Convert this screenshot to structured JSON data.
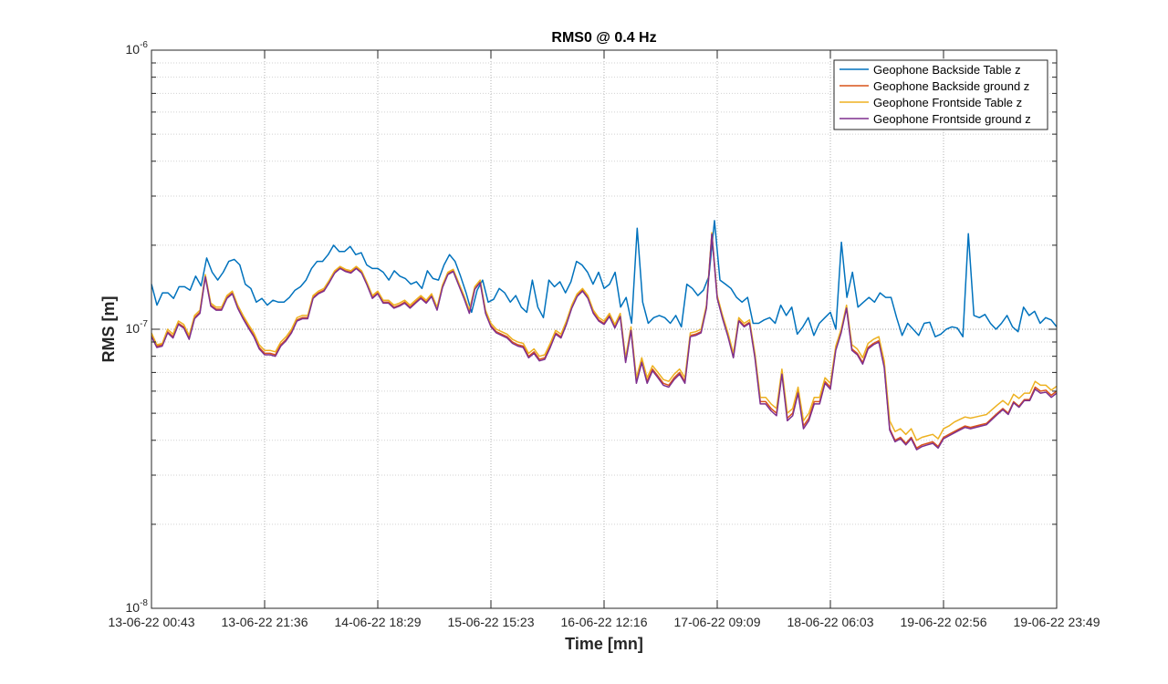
{
  "chart_data": {
    "type": "line",
    "title": "RMS0 @ 0.4 Hz",
    "xlabel": "Time [mn]",
    "ylabel": "RMS [m]",
    "yscale": "log",
    "ylim": [
      1e-08,
      1e-06
    ],
    "y_tick_labels": [
      {
        "value": 1e-08,
        "base": "10",
        "exp": "-8"
      },
      {
        "value": 1e-07,
        "base": "10",
        "exp": "-7"
      },
      {
        "value": 1e-06,
        "base": "10",
        "exp": "-6"
      }
    ],
    "x_tick_labels": [
      "13-06-22 00:43",
      "13-06-22 21:36",
      "14-06-22 18:29",
      "15-06-22 15:23",
      "16-06-22 12:16",
      "17-06-22 09:09",
      "18-06-22 06:03",
      "19-06-22 02:56",
      "19-06-22 23:49"
    ],
    "grid": true,
    "legend_position": "top-right",
    "series": [
      {
        "name": "Geophone Backside Table z",
        "color": "#0072BD",
        "values": [
          1.45e-07,
          1.22e-07,
          1.35e-07,
          1.35e-07,
          1.29e-07,
          1.42e-07,
          1.42e-07,
          1.38e-07,
          1.55e-07,
          1.43e-07,
          1.8e-07,
          1.6e-07,
          1.5e-07,
          1.6e-07,
          1.75e-07,
          1.78e-07,
          1.7e-07,
          1.45e-07,
          1.4e-07,
          1.25e-07,
          1.29e-07,
          1.22e-07,
          1.27e-07,
          1.25e-07,
          1.25e-07,
          1.3e-07,
          1.38e-07,
          1.42e-07,
          1.5e-07,
          1.65e-07,
          1.75e-07,
          1.75e-07,
          1.85e-07,
          2e-07,
          1.9e-07,
          1.9e-07,
          1.98e-07,
          1.85e-07,
          1.88e-07,
          1.7e-07,
          1.65e-07,
          1.65e-07,
          1.6e-07,
          1.5e-07,
          1.62e-07,
          1.55e-07,
          1.52e-07,
          1.45e-07,
          1.48e-07,
          1.4e-07,
          1.62e-07,
          1.52e-07,
          1.5e-07,
          1.7e-07,
          1.85e-07,
          1.75e-07,
          1.55e-07,
          1.35e-07,
          1.15e-07,
          1.38e-07,
          1.5e-07,
          1.25e-07,
          1.28e-07,
          1.4e-07,
          1.35e-07,
          1.25e-07,
          1.32e-07,
          1.2e-07,
          1.15e-07,
          1.5e-07,
          1.2e-07,
          1.1e-07,
          1.5e-07,
          1.42e-07,
          1.48e-07,
          1.35e-07,
          1.48e-07,
          1.75e-07,
          1.7e-07,
          1.6e-07,
          1.45e-07,
          1.6e-07,
          1.4e-07,
          1.45e-07,
          1.6e-07,
          1.2e-07,
          1.3e-07,
          1.05e-07,
          2.3e-07,
          1.25e-07,
          1.05e-07,
          1.1e-07,
          1.12e-07,
          1.1e-07,
          1.05e-07,
          1.12e-07,
          1.02e-07,
          1.45e-07,
          1.4e-07,
          1.32e-07,
          1.38e-07,
          1.55e-07,
          2.45e-07,
          1.5e-07,
          1.45e-07,
          1.4e-07,
          1.3e-07,
          1.25e-07,
          1.3e-07,
          1.05e-07,
          1.05e-07,
          1.08e-07,
          1.1e-07,
          1.05e-07,
          1.22e-07,
          1.12e-07,
          1.2e-07,
          9.6e-08,
          1.02e-07,
          1.1e-07,
          9.5e-08,
          1.05e-07,
          1.1e-07,
          1.15e-07,
          1e-07,
          2.05e-07,
          1.3e-07,
          1.6e-07,
          1.2e-07,
          1.25e-07,
          1.3e-07,
          1.25e-07,
          1.35e-07,
          1.3e-07,
          1.3e-07,
          1.1e-07,
          9.5e-08,
          1.05e-07,
          1e-07,
          9.5e-08,
          1.05e-07,
          1.06e-07,
          9.4e-08,
          9.6e-08,
          1e-07,
          1.02e-07,
          1.01e-07,
          9.4e-08,
          2.2e-07,
          1.12e-07,
          1.1e-07,
          1.13e-07,
          1.05e-07,
          1e-07,
          1.05e-07,
          1.12e-07,
          1.02e-07,
          9.8e-08,
          1.2e-07,
          1.12e-07,
          1.16e-07,
          1.05e-07,
          1.1e-07,
          1.08e-07,
          1.02e-07
        ]
      },
      {
        "name": "Geophone Backside ground z",
        "color": "#D95319",
        "values": [
          9.5e-08,
          8.7e-08,
          8.8e-08,
          9.8e-08,
          9.4e-08,
          1.05e-07,
          1.02e-07,
          9.3e-08,
          1.1e-07,
          1.15e-07,
          1.55e-07,
          1.22e-07,
          1.18e-07,
          1.18e-07,
          1.3e-07,
          1.35e-07,
          1.2e-07,
          1.1e-07,
          1.02e-07,
          9.5e-08,
          8.6e-08,
          8.2e-08,
          8.2e-08,
          8.1e-08,
          8.8e-08,
          9.2e-08,
          9.8e-08,
          1.08e-07,
          1.1e-07,
          1.1e-07,
          1.3e-07,
          1.35e-07,
          1.38e-07,
          1.48e-07,
          1.6e-07,
          1.66e-07,
          1.62e-07,
          1.6e-07,
          1.66e-07,
          1.6e-07,
          1.45e-07,
          1.3e-07,
          1.35e-07,
          1.25e-07,
          1.25e-07,
          1.2e-07,
          1.22e-07,
          1.25e-07,
          1.2e-07,
          1.25e-07,
          1.3e-07,
          1.25e-07,
          1.32e-07,
          1.18e-07,
          1.42e-07,
          1.58e-07,
          1.62e-07,
          1.45e-07,
          1.3e-07,
          1.15e-07,
          1.4e-07,
          1.48e-07,
          1.15e-07,
          1.03e-07,
          9.8e-08,
          9.6e-08,
          9.4e-08,
          9e-08,
          8.8e-08,
          8.7e-08,
          8e-08,
          8.3e-08,
          7.8e-08,
          7.9e-08,
          8.7e-08,
          9.7e-08,
          9.4e-08,
          1.05e-07,
          1.2e-07,
          1.32e-07,
          1.38e-07,
          1.3e-07,
          1.15e-07,
          1.08e-07,
          1.05e-07,
          1.12e-07,
          1.02e-07,
          1.12e-07,
          7.7e-08,
          1e-07,
          6.5e-08,
          7.7e-08,
          6.5e-08,
          7.2e-08,
          6.8e-08,
          6.4e-08,
          6.3e-08,
          6.7e-08,
          7e-08,
          6.5e-08,
          9.5e-08,
          9.6e-08,
          9.8e-08,
          1.2e-07,
          2.2e-07,
          1.3e-07,
          1.1e-07,
          9.5e-08,
          8e-08,
          1.08e-07,
          1.03e-07,
          1.06e-07,
          8e-08,
          5.5e-08,
          5.5e-08,
          5.2e-08,
          5e-08,
          7e-08,
          4.8e-08,
          5e-08,
          6e-08,
          4.5e-08,
          4.8e-08,
          5.5e-08,
          5.5e-08,
          6.5e-08,
          6.2e-08,
          8.5e-08,
          9.8e-08,
          1.2e-07,
          8.5e-08,
          8.2e-08,
          7.6e-08,
          8.6e-08,
          8.9e-08,
          9.1e-08,
          7.4e-08,
          4.4e-08,
          4e-08,
          4.1e-08,
          3.9e-08,
          4.1e-08,
          3.75e-08,
          3.85e-08,
          3.9e-08,
          3.95e-08,
          3.8e-08,
          4.1e-08,
          4.2e-08,
          4.3e-08,
          4.4e-08,
          4.5e-08,
          4.45e-08,
          4.5e-08,
          4.55e-08,
          4.6e-08,
          4.8e-08,
          5e-08,
          5.2e-08,
          5e-08,
          5.5e-08,
          5.3e-08,
          5.6e-08,
          5.6e-08,
          6.2e-08,
          6e-08,
          6.05e-08,
          5.8e-08,
          6e-08
        ]
      },
      {
        "name": "Geophone Frontside Table z",
        "color": "#EDB120",
        "values": [
          9.7e-08,
          8.8e-08,
          8.9e-08,
          1e-07,
          9.6e-08,
          1.07e-07,
          1.04e-07,
          9.5e-08,
          1.12e-07,
          1.17e-07,
          1.57e-07,
          1.24e-07,
          1.2e-07,
          1.2e-07,
          1.32e-07,
          1.37e-07,
          1.22e-07,
          1.12e-07,
          1.04e-07,
          9.7e-08,
          8.8e-08,
          8.4e-08,
          8.4e-08,
          8.3e-08,
          9e-08,
          9.4e-08,
          1e-07,
          1.1e-07,
          1.12e-07,
          1.12e-07,
          1.32e-07,
          1.37e-07,
          1.4e-07,
          1.5e-07,
          1.62e-07,
          1.68e-07,
          1.64e-07,
          1.62e-07,
          1.68e-07,
          1.62e-07,
          1.47e-07,
          1.32e-07,
          1.37e-07,
          1.27e-07,
          1.27e-07,
          1.22e-07,
          1.24e-07,
          1.27e-07,
          1.22e-07,
          1.27e-07,
          1.32e-07,
          1.27e-07,
          1.34e-07,
          1.2e-07,
          1.44e-07,
          1.6e-07,
          1.64e-07,
          1.47e-07,
          1.32e-07,
          1.17e-07,
          1.42e-07,
          1.5e-07,
          1.17e-07,
          1.05e-07,
          1e-07,
          9.8e-08,
          9.6e-08,
          9.2e-08,
          9e-08,
          8.9e-08,
          8.2e-08,
          8.5e-08,
          8e-08,
          8.1e-08,
          8.9e-08,
          9.9e-08,
          9.6e-08,
          1.07e-07,
          1.22e-07,
          1.34e-07,
          1.4e-07,
          1.32e-07,
          1.17e-07,
          1.1e-07,
          1.07e-07,
          1.14e-07,
          1.04e-07,
          1.14e-07,
          7.9e-08,
          1.02e-07,
          6.7e-08,
          7.9e-08,
          6.7e-08,
          7.4e-08,
          7e-08,
          6.6e-08,
          6.5e-08,
          6.9e-08,
          7.2e-08,
          6.7e-08,
          9.7e-08,
          9.8e-08,
          1e-07,
          1.22e-07,
          2.22e-07,
          1.32e-07,
          1.12e-07,
          9.7e-08,
          8.2e-08,
          1.1e-07,
          1.05e-07,
          1.08e-07,
          8.2e-08,
          5.7e-08,
          5.7e-08,
          5.4e-08,
          5.2e-08,
          7.2e-08,
          5e-08,
          5.2e-08,
          6.2e-08,
          4.7e-08,
          5e-08,
          5.7e-08,
          5.7e-08,
          6.7e-08,
          6.4e-08,
          8.7e-08,
          1e-07,
          1.22e-07,
          8.8e-08,
          8.5e-08,
          7.9e-08,
          8.9e-08,
          9.2e-08,
          9.4e-08,
          7.7e-08,
          4.7e-08,
          4.3e-08,
          4.4e-08,
          4.2e-08,
          4.4e-08,
          4e-08,
          4.1e-08,
          4.15e-08,
          4.2e-08,
          4.05e-08,
          4.4e-08,
          4.5e-08,
          4.65e-08,
          4.75e-08,
          4.85e-08,
          4.8e-08,
          4.85e-08,
          4.9e-08,
          4.95e-08,
          5.15e-08,
          5.35e-08,
          5.55e-08,
          5.35e-08,
          5.85e-08,
          5.65e-08,
          5.9e-08,
          5.9e-08,
          6.5e-08,
          6.3e-08,
          6.3e-08,
          6.05e-08,
          6.25e-08
        ]
      },
      {
        "name": "Geophone Frontside ground z",
        "color": "#7E2F8E",
        "values": [
          9.4e-08,
          8.6e-08,
          8.7e-08,
          9.7e-08,
          9.3e-08,
          1.04e-07,
          1.01e-07,
          9.2e-08,
          1.09e-07,
          1.14e-07,
          1.54e-07,
          1.21e-07,
          1.17e-07,
          1.17e-07,
          1.29e-07,
          1.34e-07,
          1.19e-07,
          1.09e-07,
          1.01e-07,
          9.4e-08,
          8.5e-08,
          8.1e-08,
          8.1e-08,
          8e-08,
          8.7e-08,
          9.1e-08,
          9.7e-08,
          1.07e-07,
          1.09e-07,
          1.09e-07,
          1.29e-07,
          1.34e-07,
          1.37e-07,
          1.47e-07,
          1.59e-07,
          1.65e-07,
          1.61e-07,
          1.59e-07,
          1.65e-07,
          1.59e-07,
          1.44e-07,
          1.29e-07,
          1.34e-07,
          1.24e-07,
          1.24e-07,
          1.19e-07,
          1.21e-07,
          1.24e-07,
          1.19e-07,
          1.24e-07,
          1.29e-07,
          1.24e-07,
          1.31e-07,
          1.17e-07,
          1.41e-07,
          1.57e-07,
          1.61e-07,
          1.44e-07,
          1.29e-07,
          1.14e-07,
          1.39e-07,
          1.47e-07,
          1.14e-07,
          1.02e-07,
          9.7e-08,
          9.5e-08,
          9.3e-08,
          8.9e-08,
          8.7e-08,
          8.6e-08,
          7.9e-08,
          8.2e-08,
          7.7e-08,
          7.8e-08,
          8.6e-08,
          9.6e-08,
          9.3e-08,
          1.04e-07,
          1.19e-07,
          1.31e-07,
          1.37e-07,
          1.29e-07,
          1.14e-07,
          1.07e-07,
          1.04e-07,
          1.11e-07,
          1.01e-07,
          1.11e-07,
          7.6e-08,
          9.9e-08,
          6.4e-08,
          7.6e-08,
          6.4e-08,
          7.1e-08,
          6.7e-08,
          6.3e-08,
          6.2e-08,
          6.6e-08,
          6.9e-08,
          6.4e-08,
          9.4e-08,
          9.5e-08,
          9.7e-08,
          1.19e-07,
          2.19e-07,
          1.29e-07,
          1.09e-07,
          9.4e-08,
          7.9e-08,
          1.07e-07,
          1.02e-07,
          1.05e-07,
          7.9e-08,
          5.4e-08,
          5.4e-08,
          5.1e-08,
          4.9e-08,
          6.9e-08,
          4.7e-08,
          4.9e-08,
          5.9e-08,
          4.4e-08,
          4.7e-08,
          5.4e-08,
          5.4e-08,
          6.4e-08,
          6.1e-08,
          8.4e-08,
          9.7e-08,
          1.19e-07,
          8.4e-08,
          8.1e-08,
          7.5e-08,
          8.5e-08,
          8.8e-08,
          9e-08,
          7.3e-08,
          4.35e-08,
          3.95e-08,
          4.05e-08,
          3.85e-08,
          4.05e-08,
          3.7e-08,
          3.8e-08,
          3.85e-08,
          3.9e-08,
          3.75e-08,
          4.05e-08,
          4.15e-08,
          4.25e-08,
          4.35e-08,
          4.45e-08,
          4.4e-08,
          4.45e-08,
          4.5e-08,
          4.55e-08,
          4.75e-08,
          4.95e-08,
          5.15e-08,
          4.95e-08,
          5.45e-08,
          5.25e-08,
          5.55e-08,
          5.55e-08,
          6.1e-08,
          5.9e-08,
          5.95e-08,
          5.7e-08,
          5.9e-08
        ]
      }
    ]
  }
}
